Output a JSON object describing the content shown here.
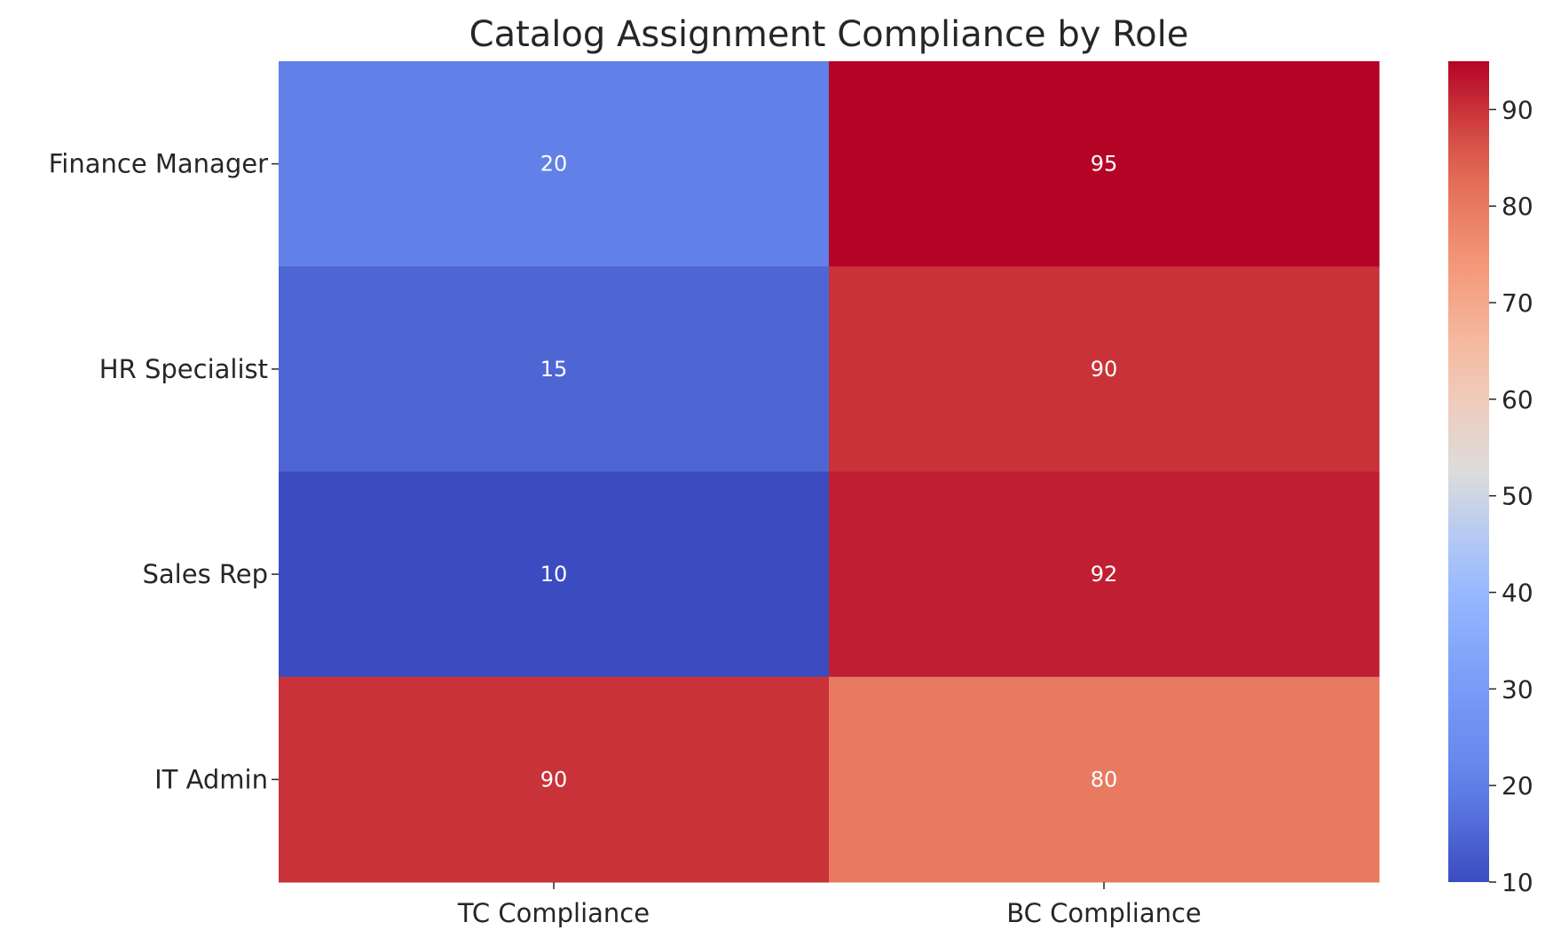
{
  "chart_data": {
    "type": "heatmap",
    "title": "Catalog Assignment Compliance by Role",
    "xlabel": "",
    "ylabel": "",
    "columns": [
      "TC Compliance",
      "BC Compliance"
    ],
    "rows": [
      "Finance Manager",
      "HR Specialist",
      "Sales Rep",
      "IT Admin"
    ],
    "values": [
      [
        20,
        95
      ],
      [
        15,
        90
      ],
      [
        10,
        92
      ],
      [
        90,
        80
      ]
    ],
    "colormap": "coolwarm",
    "colorbar": {
      "range": [
        10,
        95
      ],
      "ticks": [
        10,
        20,
        30,
        40,
        50,
        60,
        70,
        80,
        90
      ]
    },
    "annotations": true
  }
}
